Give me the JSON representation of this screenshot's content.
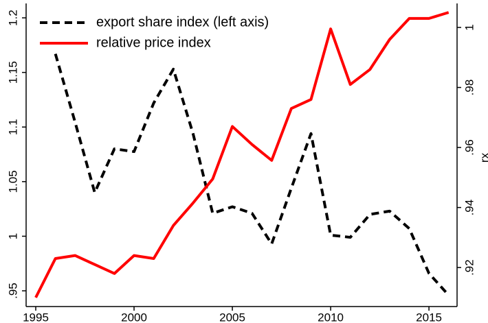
{
  "chart_data": {
    "type": "line",
    "x": [
      1995,
      1996,
      1997,
      1998,
      1999,
      2000,
      2001,
      2002,
      2003,
      2004,
      2005,
      2006,
      2007,
      2008,
      2009,
      2010,
      2011,
      2012,
      2013,
      2014,
      2015,
      2016
    ],
    "series": [
      {
        "name": "export share index (left axis)",
        "color": "#000000",
        "dashed": true,
        "values": [
          null,
          1.167,
          1.1045,
          1.04,
          1.08,
          1.0775,
          1.122,
          1.153,
          1.094,
          1.021,
          1.027,
          1.021,
          0.993,
          1.044,
          1.094,
          1.001,
          0.999,
          1.02,
          1.023,
          1.007,
          0.966,
          0.946
        ]
      },
      {
        "name": "relative price index",
        "color": "#ff0000",
        "axis": "y2",
        "values": [
          0.91,
          0.923,
          0.924,
          0.921,
          0.918,
          0.924,
          0.923,
          0.934,
          0.9415,
          0.9495,
          0.967,
          0.961,
          0.9557,
          0.973,
          0.976,
          0.9995,
          0.981,
          0.986,
          0.996,
          1.003,
          1.003,
          1.005
        ]
      }
    ],
    "xlim": [
      1994.51,
      2016.43
    ],
    "xticks": [
      1995,
      2000,
      2005,
      2010,
      2015
    ],
    "ylim": [
      0.9356,
      1.2132
    ],
    "yticks": [
      {
        "value": 0.95,
        "label": ".95"
      },
      1,
      1.05,
      1.1,
      1.15,
      1.2
    ],
    "y2lim": [
      0.907,
      1.008
    ],
    "y2ticks": [
      {
        "value": 0.92,
        "label": ".92"
      },
      {
        "value": 0.94,
        "label": ".94"
      },
      {
        "value": 0.96,
        "label": ".96"
      },
      {
        "value": 0.98,
        "label": ".98"
      },
      1
    ],
    "y2label": "rx",
    "legend": "top-left"
  }
}
